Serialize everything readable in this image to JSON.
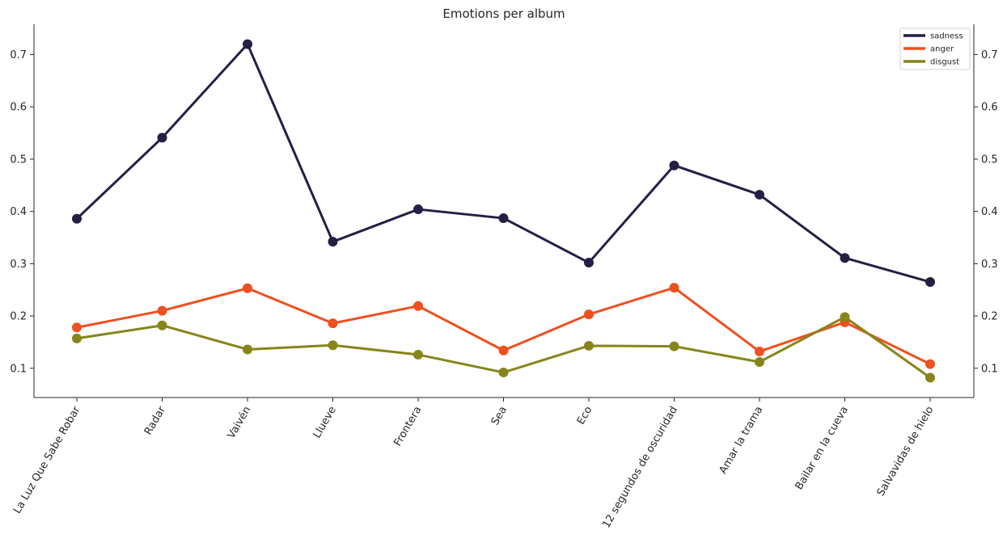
{
  "chart_data": {
    "type": "line",
    "title": "Emotions per album",
    "xlabel": "",
    "ylabel": "",
    "categories": [
      "La Luz Que Sabe Robar",
      "Radar",
      "Vaivén",
      "Llueve",
      "Frontera",
      "Sea",
      "Eco",
      "12 segundos de oscuridad",
      "Amar la trama",
      "Bailar en la cueva",
      "Salvavidas de hielo"
    ],
    "series": [
      {
        "name": "sadness",
        "color": "#231f45",
        "values": [
          0.386,
          0.541,
          0.72,
          0.342,
          0.404,
          0.387,
          0.302,
          0.488,
          0.432,
          0.311,
          0.265
        ]
      },
      {
        "name": "anger",
        "color": "#ee5020",
        "values": [
          0.178,
          0.21,
          0.253,
          0.186,
          0.219,
          0.134,
          0.203,
          0.254,
          0.132,
          0.188,
          0.108
        ]
      },
      {
        "name": "disgust",
        "color": "#86851a",
        "values": [
          0.157,
          0.182,
          0.136,
          0.144,
          0.126,
          0.092,
          0.143,
          0.142,
          0.112,
          0.198,
          0.082
        ]
      }
    ],
    "ylim": [
      0.044,
      0.758
    ],
    "yticks": [
      "0.1",
      "0.2",
      "0.3",
      "0.4",
      "0.5",
      "0.6",
      "0.7"
    ],
    "right_axis_ticks": true,
    "grid": false,
    "legend": "top-right"
  }
}
